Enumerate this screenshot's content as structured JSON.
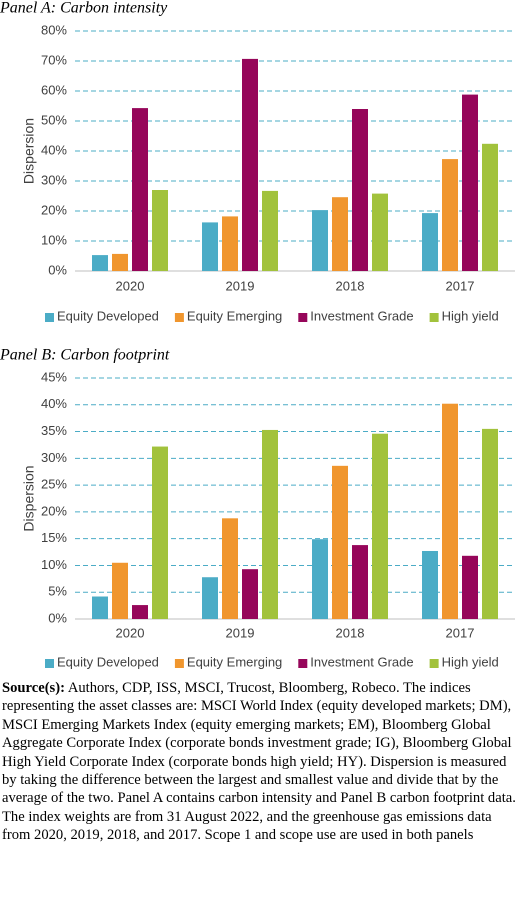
{
  "chart_data": [
    {
      "type": "bar",
      "title": "Panel A: Carbon intensity",
      "y_label": "Dispersion",
      "categories": [
        "2020",
        "2019",
        "2018",
        "2017"
      ],
      "series": [
        {
          "name": "Equity Developed",
          "color": "#4bacc6",
          "values": [
            5.3,
            16.2,
            20.3,
            19.3
          ]
        },
        {
          "name": "Equity Emerging",
          "color": "#f0962e",
          "values": [
            5.7,
            18.2,
            24.6,
            37.3
          ]
        },
        {
          "name": "Investment Grade",
          "color": "#96065a",
          "values": [
            54.3,
            70.7,
            54,
            58.8
          ]
        },
        {
          "name": "High yield",
          "color": "#a2c23c",
          "values": [
            27,
            26.7,
            25.8,
            42.4
          ]
        }
      ],
      "ylim": [
        0,
        80
      ],
      "yticks": [
        {
          "value": 0,
          "label": "0%"
        },
        {
          "value": 10,
          "label": "10%"
        },
        {
          "value": 20,
          "label": "20%"
        },
        {
          "value": 30,
          "label": "30%"
        },
        {
          "value": 40,
          "label": "40%"
        },
        {
          "value": 50,
          "label": "50%"
        },
        {
          "value": 60,
          "label": "60%"
        },
        {
          "value": 70,
          "label": "70%"
        },
        {
          "value": 80,
          "label": "80%"
        }
      ],
      "grid": true,
      "legend": "bottom"
    },
    {
      "type": "bar",
      "title": "Panel B: Carbon footprint",
      "y_label": "Dispersion",
      "categories": [
        "2020",
        "2019",
        "2018",
        "2017"
      ],
      "series": [
        {
          "name": "Equity Developed",
          "color": "#4bacc6",
          "values": [
            4.2,
            7.8,
            14.9,
            12.7
          ]
        },
        {
          "name": "Equity Emerging",
          "color": "#f0962e",
          "values": [
            10.5,
            18.8,
            28.6,
            40.2
          ]
        },
        {
          "name": "Investment Grade",
          "color": "#96065a",
          "values": [
            2.6,
            9.3,
            13.8,
            11.8
          ]
        },
        {
          "name": "High yield",
          "color": "#a2c23c",
          "values": [
            32.2,
            35.3,
            34.6,
            35.5
          ]
        }
      ],
      "ylim": [
        0,
        45
      ],
      "yticks": [
        {
          "value": 0,
          "label": "0%"
        },
        {
          "value": 5,
          "label": "5%"
        },
        {
          "value": 10,
          "label": "10%"
        },
        {
          "value": 15,
          "label": "15%"
        },
        {
          "value": 20,
          "label": "20%"
        },
        {
          "value": 25,
          "label": "25%"
        },
        {
          "value": 30,
          "label": "30%"
        },
        {
          "value": 35,
          "label": "35%"
        },
        {
          "value": 40,
          "label": "40%"
        },
        {
          "value": 45,
          "label": "45%"
        }
      ],
      "grid": true,
      "legend": "bottom"
    }
  ],
  "source": {
    "label": "Source(s):",
    "text": "Authors, CDP, ISS, MSCI, Trucost, Bloomberg, Robeco. The indices representing the asset classes are: MSCI World Index (equity developed markets; DM), MSCI Emerging Markets Index (equity emerging markets; EM), Bloomberg Global Aggregate Corporate Index (corporate bonds investment grade; IG), Bloomberg Global High Yield Corporate Index (corporate bonds high yield; HY). Dispersion is measured by taking the difference between the largest and smallest value and divide that by the average of the two. Panel A contains carbon intensity and Panel B carbon footprint data. The index weights are from 31 August 2022, and the greenhouse gas emissions data from 2020, 2019, 2018, and 2017. Scope 1 and scope use are used in both panels"
  }
}
